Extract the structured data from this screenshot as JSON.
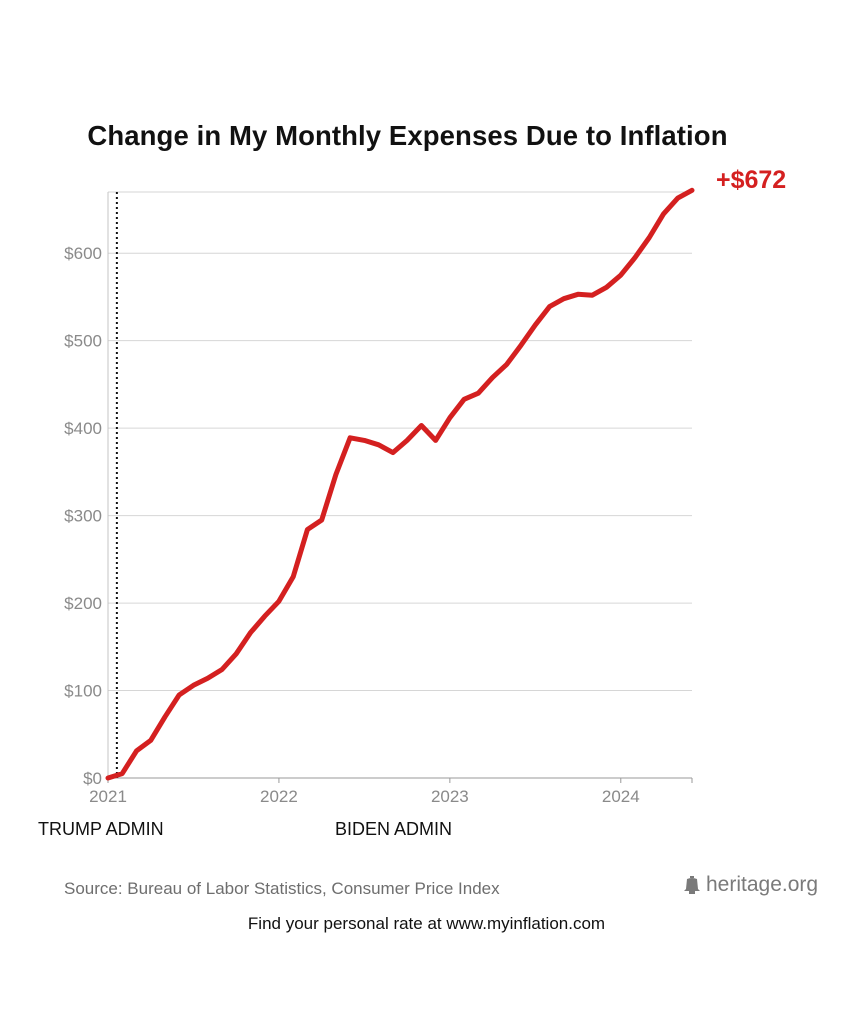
{
  "chart_data": {
    "type": "line",
    "title": "Change in My Monthly Expenses Due to Inflation",
    "xlabel": "",
    "ylabel": "",
    "x_ticks": [
      "2021",
      "2022",
      "2023",
      "2024"
    ],
    "y_ticks": [
      "$0",
      "$100",
      "$200",
      "$300",
      "$400",
      "$500",
      "$600"
    ],
    "ylim": [
      0,
      670
    ],
    "xlim": [
      "2021-01",
      "2024-06"
    ],
    "grid": true,
    "end_label": "+$672",
    "series": [
      {
        "color": "#d42020",
        "x": [
          "2021-01",
          "2021-02",
          "2021-03",
          "2021-04",
          "2021-05",
          "2021-06",
          "2021-07",
          "2021-08",
          "2021-09",
          "2021-10",
          "2021-11",
          "2021-12",
          "2022-01",
          "2022-02",
          "2022-03",
          "2022-04",
          "2022-05",
          "2022-06",
          "2022-07",
          "2022-08",
          "2022-09",
          "2022-10",
          "2022-11",
          "2022-12",
          "2023-01",
          "2023-02",
          "2023-03",
          "2023-04",
          "2023-05",
          "2023-06",
          "2023-07",
          "2023-08",
          "2023-09",
          "2023-10",
          "2023-11",
          "2023-12",
          "2024-01",
          "2024-02",
          "2024-03",
          "2024-04",
          "2024-05",
          "2024-06"
        ],
        "values": [
          0,
          5,
          31,
          43,
          70,
          95,
          106,
          114,
          124,
          142,
          166,
          185,
          202,
          230,
          284,
          295,
          347,
          389,
          386,
          381,
          372,
          386,
          403,
          386,
          412,
          433,
          440,
          458,
          473,
          495,
          518,
          539,
          548,
          553,
          552,
          561,
          575,
          595,
          618,
          645,
          663,
          672
        ]
      }
    ],
    "annotations": [
      {
        "type": "vline",
        "x": "2021-01-20",
        "style": "dotted",
        "color": "#111111"
      }
    ]
  },
  "annotations": {
    "left_admin": "TRUMP ADMIN",
    "right_admin": "BIDEN ADMIN"
  },
  "source": "Source: Bureau of Labor Statistics, Consumer Price Index",
  "logo_text": "heritage.org",
  "footer": "Find your personal rate at www.myinflation.com",
  "colors": {
    "line": "#d42020",
    "grid": "#d6d6d6",
    "tick_text": "#8a8a8a"
  }
}
